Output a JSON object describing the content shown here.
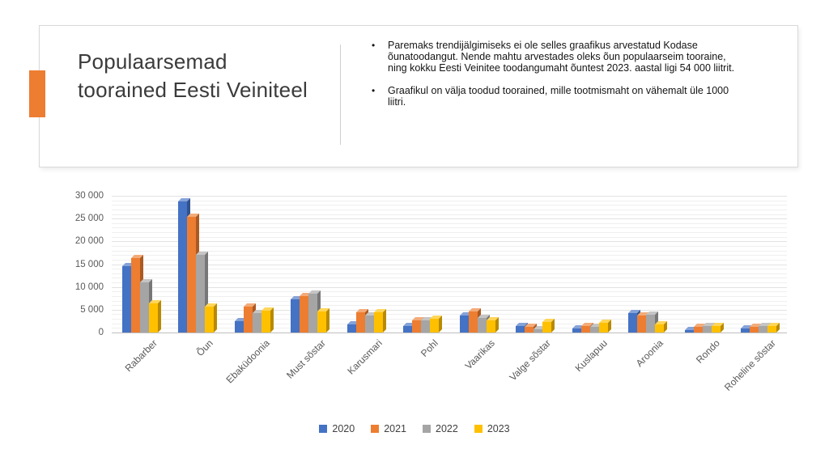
{
  "header": {
    "title": "Populaarsemad toorained Eesti Veiniteel",
    "title_lines": [
      "Populaarsemad",
      "toorained Eesti Veiniteel"
    ],
    "accent_color": "#ED7D31",
    "bullet_glyph": "•",
    "bullets": [
      "Paremaks trendijälgimiseks ei ole selles graafikus arvestatud Kodase õunatoodangut. Nende mahtu arvestades oleks õun populaarseim tooraine, ning kokku Eesti Veinitee toodangumaht õuntest 2023. aastal ligi 54 000 liitrit.",
      "Graafikul on välja toodud toorained, mille tootmismaht on vähemalt üle 1000 liitri."
    ]
  },
  "chart_data": {
    "type": "bar",
    "style": "3d-clustered-column",
    "categories": [
      "Rabarber",
      "Õun",
      "Ebaküdoonia",
      "Must sõstar",
      "Karusmari",
      "Pohl",
      "Vaarikas",
      "Valge sõstar",
      "Kuslapuu",
      "Aroonia",
      "Rondo",
      "Roheline sõstar"
    ],
    "series": [
      {
        "name": "2020",
        "color": "#4472C4",
        "values": [
          14500,
          28700,
          2500,
          7300,
          1700,
          1500,
          3700,
          1500,
          800,
          4300,
          500,
          900
        ]
      },
      {
        "name": "2021",
        "color": "#ED7D31",
        "values": [
          16300,
          25300,
          5700,
          7900,
          4400,
          2600,
          4700,
          1300,
          1400,
          3700,
          1200,
          1300
        ]
      },
      {
        "name": "2022",
        "color": "#A5A5A5",
        "values": [
          11000,
          17000,
          4200,
          8600,
          3700,
          2700,
          3200,
          700,
          1300,
          3900,
          1400,
          1400
        ]
      },
      {
        "name": "2023",
        "color": "#FFC000",
        "values": [
          6400,
          5600,
          4800,
          4700,
          4500,
          3100,
          2600,
          2300,
          2100,
          1700,
          1500,
          1400
        ]
      }
    ],
    "ylim": [
      0,
      30000
    ],
    "y_major_step": 5000,
    "y_minor_step": 1000,
    "y_tick_labels": [
      "0",
      "5 000",
      "10 000",
      "15 000",
      "20 000",
      "25 000",
      "30 000"
    ],
    "grid": true,
    "legend_position": "bottom"
  }
}
